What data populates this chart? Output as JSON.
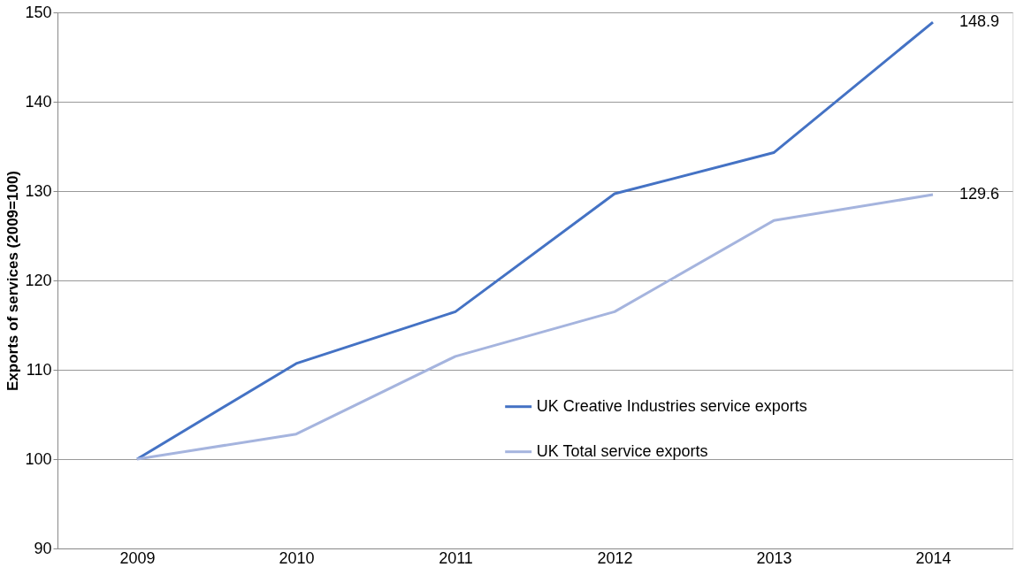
{
  "chart_data": {
    "type": "line",
    "ylabel": "Exports of services  (2009=100)",
    "categories": [
      "2009",
      "2010",
      "2011",
      "2012",
      "2013",
      "2014"
    ],
    "series": [
      {
        "name": "UK Creative Industries service exports",
        "color": "#4472c4",
        "values": [
          100,
          110.7,
          116.5,
          129.7,
          134.3,
          148.9
        ],
        "value_labels": [
          null,
          null,
          null,
          null,
          null,
          "148.9"
        ]
      },
      {
        "name": "UK Total service exports",
        "color": "#a5b4de",
        "values": [
          100,
          102.8,
          111.5,
          116.5,
          126.7,
          129.6
        ],
        "value_labels": [
          null,
          null,
          null,
          null,
          null,
          "129.6"
        ]
      }
    ],
    "ylim": [
      90,
      150
    ],
    "yticks": [
      90,
      100,
      110,
      120,
      130,
      140,
      150
    ],
    "grid": "y",
    "legend": "bottom right",
    "marker": "none",
    "line_style": "solid"
  }
}
